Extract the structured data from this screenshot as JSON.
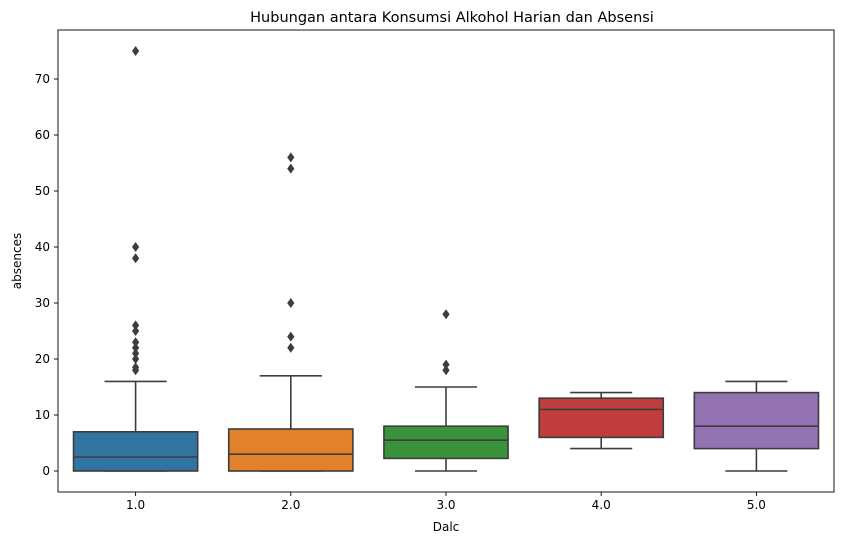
{
  "chart_data": {
    "type": "box",
    "title": "Hubungan antara Konsumsi Alkohol Harian dan Absensi",
    "xlabel": "Dalc",
    "ylabel": "absences",
    "ylim": [
      -3.75,
      78.75
    ],
    "yticks": [
      0,
      10,
      20,
      30,
      40,
      50,
      60,
      70
    ],
    "grid": false,
    "categories": [
      "1.0",
      "2.0",
      "3.0",
      "4.0",
      "5.0"
    ],
    "boxes": [
      {
        "category": "1.0",
        "color": "#3274a1",
        "whisker_low": 0,
        "q1": 0,
        "median": 2.5,
        "q3": 7,
        "whisker_high": 16,
        "outliers": [
          18,
          18.5,
          20,
          21,
          22,
          23,
          25,
          26,
          38,
          40,
          75
        ]
      },
      {
        "category": "2.0",
        "color": "#e1812c",
        "whisker_low": 0,
        "q1": 0,
        "median": 3,
        "q3": 7.5,
        "whisker_high": 17,
        "outliers": [
          22,
          24,
          30,
          54,
          56
        ]
      },
      {
        "category": "3.0",
        "color": "#3a923a",
        "whisker_low": 0,
        "q1": 2.25,
        "median": 5.5,
        "q3": 8,
        "whisker_high": 15,
        "outliers": [
          18,
          19,
          28
        ]
      },
      {
        "category": "4.0",
        "color": "#c03d3e",
        "whisker_low": 4,
        "q1": 6,
        "median": 11,
        "q3": 13,
        "whisker_high": 14,
        "outliers": []
      },
      {
        "category": "5.0",
        "color": "#9372b2",
        "whisker_low": 0,
        "q1": 4,
        "median": 8,
        "q3": 14,
        "whisker_high": 16,
        "outliers": []
      }
    ],
    "line_color": "#3d3d3d"
  }
}
